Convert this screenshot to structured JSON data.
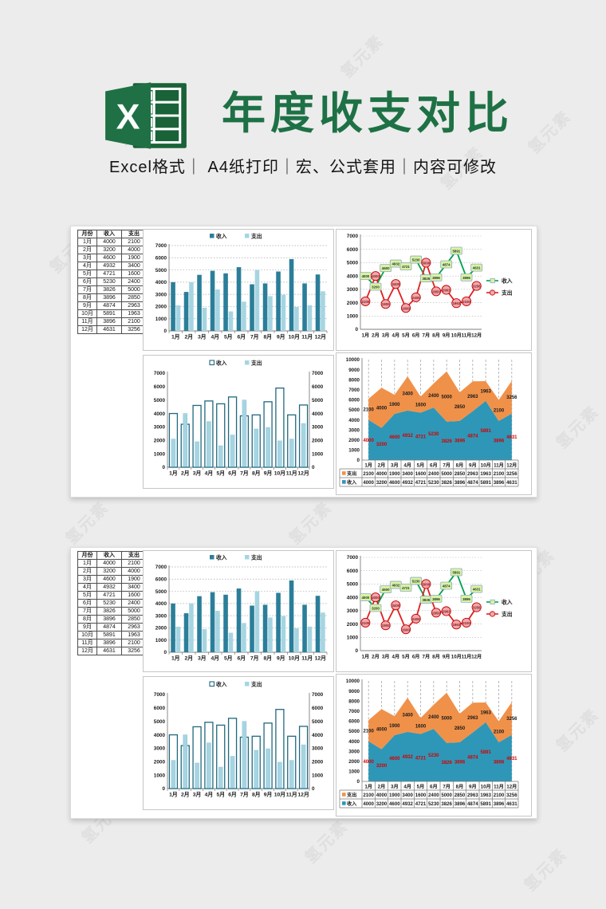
{
  "header": {
    "title": "年度收支对比",
    "subtitle": "Excel格式｜ A4纸打印｜宏、公式套用｜内容可修改",
    "logo_text": "X",
    "title_color": "#1E7145"
  },
  "watermark": {
    "text": "氢元素"
  },
  "panels": {
    "count": 2,
    "note": "two identical template preview panels"
  },
  "table": {
    "columns": [
      "月份",
      "收入",
      "支出"
    ],
    "rows": [
      [
        "1月",
        4000,
        2100
      ],
      [
        "2月",
        3200,
        4000
      ],
      [
        "3月",
        4600,
        1900
      ],
      [
        "4月",
        4932,
        3400
      ],
      [
        "5月",
        4721,
        1600
      ],
      [
        "6月",
        5230,
        2400
      ],
      [
        "7月",
        3826,
        5000
      ],
      [
        "8月",
        3896,
        2850
      ],
      [
        "9月",
        4874,
        2963
      ],
      [
        "10月",
        5891,
        1963
      ],
      [
        "11月",
        3896,
        2100
      ],
      [
        "12月",
        4631,
        3256
      ]
    ]
  },
  "chart_data": [
    {
      "id": "clustered-bar-chart",
      "type": "bar",
      "title": "",
      "legend_position": "top",
      "categories": [
        "1月",
        "2月",
        "3月",
        "4月",
        "5月",
        "6月",
        "7月",
        "8月",
        "9月",
        "10月",
        "11月",
        "12月"
      ],
      "series": [
        {
          "name": "收入",
          "values": [
            4000,
            3200,
            4600,
            4932,
            4721,
            5230,
            3826,
            3896,
            4874,
            5891,
            3896,
            4631
          ],
          "color": "#2B7E99"
        },
        {
          "name": "支出",
          "values": [
            2100,
            4000,
            1900,
            3400,
            1600,
            2400,
            5000,
            2850,
            2963,
            1963,
            2100,
            3256
          ],
          "color": "#A6D5E2"
        }
      ],
      "ylim": [
        0,
        7000
      ],
      "ytick": 1000,
      "grid": "dotted-horizontal",
      "xlabel": "",
      "ylabel": ""
    },
    {
      "id": "line-chart",
      "type": "line",
      "title": "",
      "legend_position": "right",
      "data_labels": true,
      "categories": [
        "1月",
        "2月",
        "3月",
        "4月",
        "5月",
        "6月",
        "7月",
        "8月",
        "9月",
        "10月",
        "11月",
        "12月"
      ],
      "series": [
        {
          "name": "收入",
          "values": [
            4000,
            3200,
            4600,
            4932,
            4721,
            5230,
            3826,
            3896,
            4874,
            5891,
            3896,
            4631
          ],
          "color": "#00A24F",
          "marker": "square",
          "marker_fill": "#D9F3A0",
          "marker_border": "#8FAAC8"
        },
        {
          "name": "支出",
          "values": [
            2100,
            4000,
            1900,
            3400,
            1600,
            2400,
            5000,
            2850,
            2963,
            1963,
            2100,
            3256
          ],
          "color": "#E02020",
          "marker": "circle",
          "marker_fill": "#F2A6AC",
          "marker_border": "#C00000"
        }
      ],
      "ylim": [
        0,
        7000
      ],
      "ytick": 1000,
      "grid": "dotted-horizontal"
    },
    {
      "id": "overlap-bar-chart",
      "type": "bar",
      "variant": "overlapped",
      "dual_axis": true,
      "title": "",
      "legend_position": "top",
      "categories": [
        "1月",
        "2月",
        "3月",
        "4月",
        "5月",
        "6月",
        "7月",
        "8月",
        "9月",
        "10月",
        "11月",
        "12月"
      ],
      "series": [
        {
          "name": "收入",
          "values": [
            4000,
            3200,
            4600,
            4932,
            4721,
            5230,
            3826,
            3896,
            4874,
            5891,
            3896,
            4631
          ],
          "style": "outline",
          "color": "#21687F"
        },
        {
          "name": "支出",
          "values": [
            2100,
            4000,
            1900,
            3400,
            1600,
            2400,
            5000,
            2850,
            2963,
            1963,
            2100,
            3256
          ],
          "color": "#A6D5E2"
        }
      ],
      "ylim": [
        0,
        7000
      ],
      "ytick": 1000,
      "grid": "none"
    },
    {
      "id": "stacked-area-chart",
      "type": "area",
      "stacked": true,
      "title": "",
      "legend_position": "bottom-table",
      "data_labels": true,
      "categories": [
        "1月",
        "2月",
        "3月",
        "4月",
        "5月",
        "6月",
        "7月",
        "8月",
        "9月",
        "10月",
        "11月",
        "12月"
      ],
      "series": [
        {
          "name": "收入",
          "values": [
            4000,
            3200,
            4600,
            4932,
            4721,
            5230,
            3826,
            3896,
            4874,
            5891,
            3896,
            4631
          ],
          "color": "#2E97B7",
          "label_color": "#D40000"
        },
        {
          "name": "支出",
          "values": [
            2100,
            4000,
            1900,
            3400,
            1600,
            2400,
            5000,
            2850,
            2963,
            1963,
            2100,
            3256
          ],
          "color": "#F0914A",
          "label_color": "#1A1A1A"
        }
      ],
      "ylim": [
        0,
        10000
      ],
      "ytick": 1000,
      "grid": "dashed-vertical"
    }
  ]
}
